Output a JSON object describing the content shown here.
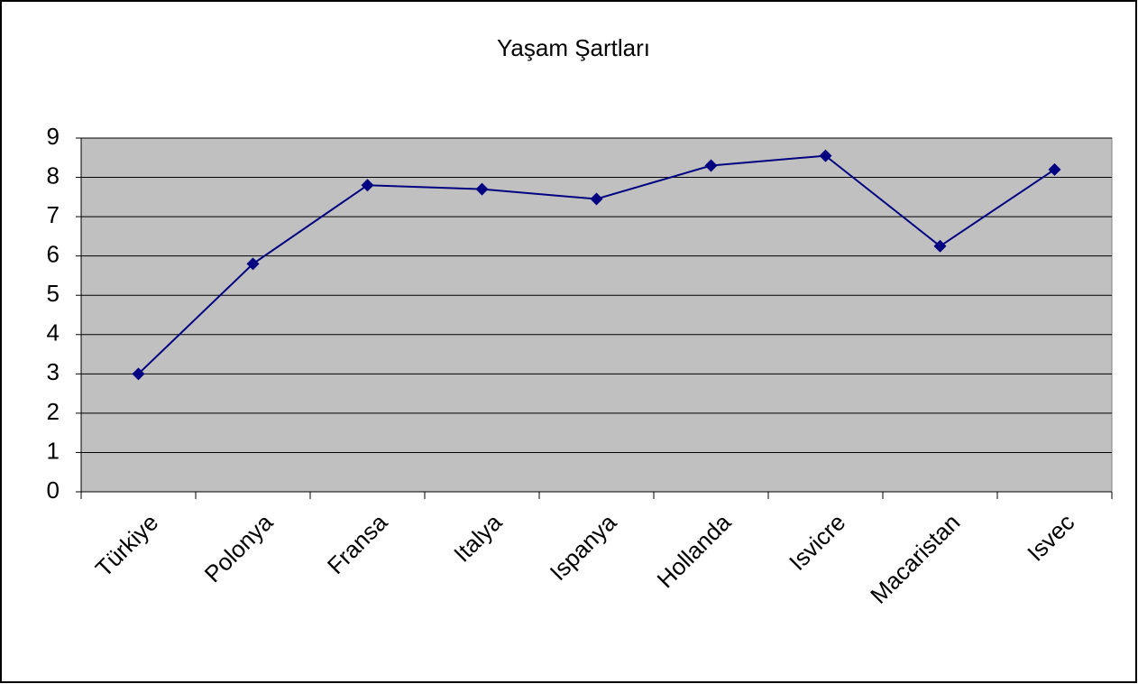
{
  "chart_data": {
    "type": "line",
    "title": "Yaşam Şartları",
    "categories": [
      "Türkiye",
      "Polonya",
      "Fransa",
      "Italya",
      "Ispanya",
      "Hollanda",
      "Isvicre",
      "Macaristan",
      "Isvec"
    ],
    "values": [
      3.0,
      5.8,
      7.8,
      7.7,
      7.45,
      8.3,
      8.55,
      6.25,
      8.2
    ],
    "color": "#000080",
    "ylim": [
      0,
      9
    ],
    "yticks": [
      0,
      1,
      2,
      3,
      4,
      5,
      6,
      7,
      8,
      9
    ],
    "grid": true
  }
}
